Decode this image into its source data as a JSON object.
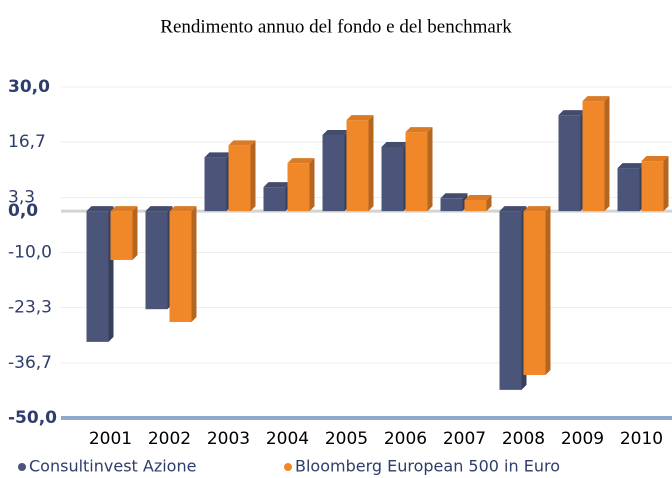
{
  "chart_data": {
    "type": "bar",
    "title": "Rendimento annuo del fondo e del benchmark",
    "categories": [
      "2001",
      "2002",
      "2003",
      "2004",
      "2005",
      "2006",
      "2007",
      "2008",
      "2009",
      "2010"
    ],
    "series": [
      {
        "name": "Consultinvest Azione",
        "color": "#4b5479",
        "values": [
          -31.6,
          -23.7,
          13.0,
          5.8,
          18.4,
          15.5,
          3.1,
          -43.2,
          23.2,
          10.4
        ]
      },
      {
        "name": "Bloomberg European 500 in Euro",
        "color": "#f0882a",
        "values": [
          -11.8,
          -26.8,
          15.9,
          11.6,
          22.0,
          19.1,
          2.7,
          -39.6,
          26.6,
          12.1
        ]
      }
    ],
    "ylim": [
      -50,
      30
    ],
    "yticks": [
      {
        "value": 30,
        "label": "30,0"
      },
      {
        "value": 16.7,
        "label": "16,7"
      },
      {
        "value": 3.3,
        "label": "3,3"
      },
      {
        "value": 0,
        "label": "0,0"
      },
      {
        "value": -10,
        "label": "-10,0"
      },
      {
        "value": -23.3,
        "label": "-23,3"
      },
      {
        "value": -36.7,
        "label": "-36,7"
      },
      {
        "value": -50,
        "label": "-50,0"
      }
    ],
    "grid": true
  }
}
